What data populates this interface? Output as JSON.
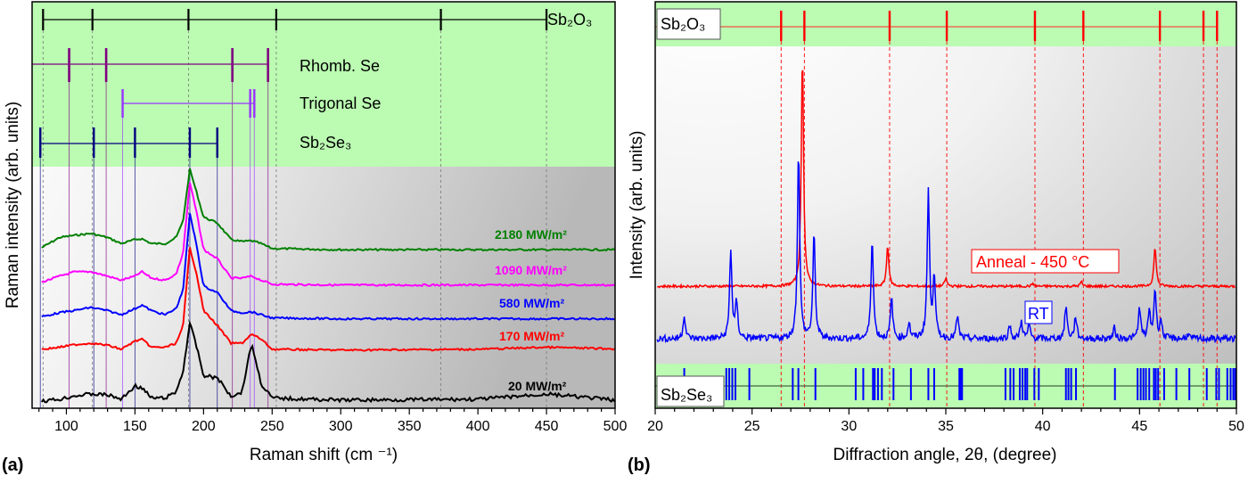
{
  "chart_data": [
    {
      "panel_label": "(a)",
      "type": "line",
      "xlabel": "Raman shift (cm ⁻¹)",
      "ylabel": "Raman intensity (arb. units)",
      "xlim": [
        75,
        500
      ],
      "xticks": [
        100,
        150,
        200,
        250,
        300,
        350,
        400,
        450,
        500
      ],
      "grid": false,
      "colors": {
        "reference_band": "#bbfbb2"
      },
      "x": [
        82,
        95,
        105,
        118,
        130,
        140,
        150,
        155,
        162,
        172,
        180,
        185,
        190,
        195,
        200,
        210,
        220,
        228,
        235,
        242,
        250,
        300,
        400,
        450,
        500
      ],
      "series": [
        {
          "name": "2180 MW/m²",
          "color": "#008000",
          "values": [
            39.5,
            42,
            42.5,
            43,
            42,
            40.5,
            41.5,
            41.7,
            40.5,
            40.5,
            42,
            46,
            58.8,
            53,
            47,
            45.6,
            41.5,
            41,
            41.2,
            40.5,
            39.3,
            39,
            39,
            39,
            39
          ]
        },
        {
          "name": "1090 MW/m²",
          "color": "#ff00ff",
          "values": [
            31,
            32.5,
            33.5,
            33.6,
            32.5,
            31.5,
            32.5,
            33.6,
            32,
            31.5,
            33,
            38,
            55.5,
            48,
            39,
            36.8,
            32,
            32,
            32.5,
            31.5,
            30.5,
            30.3,
            30.3,
            30.3,
            30.3
          ]
        },
        {
          "name": "580 MW/m²",
          "color": "#0000ff",
          "values": [
            22.5,
            23.5,
            24,
            24.8,
            24,
            23,
            24.5,
            25.4,
            24,
            23,
            24.5,
            29,
            47.8,
            40,
            30,
            28.5,
            24,
            23.5,
            23.7,
            23,
            22.2,
            22,
            22,
            22,
            22
          ]
        },
        {
          "name": "170 MW/m²",
          "color": "#ff0000",
          "values": [
            14.5,
            15,
            15.6,
            16,
            15.5,
            14.5,
            16.5,
            17,
            15,
            15,
            16,
            20,
            39.5,
            33,
            24,
            20.4,
            16,
            16,
            18.2,
            17,
            14.5,
            14.3,
            14.5,
            15,
            14.6
          ]
        },
        {
          "name": "20 MW/m²",
          "color": "#000000",
          "values": [
            1.8,
            2.2,
            3,
            3.5,
            3.3,
            2.2,
            5.5,
            5,
            2.5,
            2.5,
            4,
            9,
            21,
            15,
            8,
            7.5,
            3,
            4,
            16,
            6,
            2.5,
            2,
            2.2,
            3.5,
            2
          ]
        }
      ],
      "references": [
        {
          "name": "Sb₂O₃",
          "color": "#000000",
          "positions": [
            83,
            119,
            189,
            253,
            373,
            450
          ]
        },
        {
          "name": "Rhomb. Se",
          "color": "#800080",
          "positions": [
            102,
            129,
            221,
            247
          ]
        },
        {
          "name": "Trigonal Se",
          "color": "#9933ff",
          "positions": [
            141,
            234,
            237
          ]
        },
        {
          "name": "Sb₂Se₃",
          "color": "#000080",
          "positions": [
            81,
            120,
            150,
            190,
            210
          ]
        }
      ]
    },
    {
      "panel_label": "(b)",
      "type": "line",
      "xlabel": "Diffraction angle, 2θ, (degree)",
      "ylabel": "Intensity (arb. units)",
      "xlim": [
        20,
        50
      ],
      "xticks": [
        20,
        25,
        30,
        35,
        40,
        45,
        50
      ],
      "grid": false,
      "series": [
        {
          "name": "Anneal - 450 °C",
          "color": "#ff0000",
          "baseline": 30,
          "peaks_x": [
            27.6,
            32.0,
            35.0,
            39.5,
            42.0,
            45.8
          ],
          "peaks_y": [
            87.3,
            40.1,
            32,
            30.7,
            31.1,
            39.7
          ]
        },
        {
          "name": "RT",
          "color": "#0000ff",
          "baseline": 17.1,
          "peaks_x": [
            21.5,
            23.9,
            24.2,
            27.4,
            28.2,
            31.2,
            32.2,
            33.1,
            34.1,
            34.4,
            35.6,
            38.3,
            38.9,
            39.3,
            41.2,
            41.7,
            43.7,
            45.0,
            45.5,
            45.8,
            46.1,
            47.5
          ],
          "peaks_y": [
            23,
            39,
            25.9,
            63.6,
            43,
            42.3,
            27,
            21,
            53.3,
            32.5,
            22.6,
            20.4,
            21.5,
            20.4,
            25.2,
            22.6,
            19.7,
            24.8,
            23.7,
            29.2,
            21.5,
            18.2
          ]
        }
      ],
      "references": [
        {
          "name": "Sb₂O₃",
          "color": "#ff0000",
          "positions": [
            26.5,
            27.7,
            32.1,
            35.05,
            39.6,
            42.1,
            46.05,
            48.3,
            49.0
          ]
        },
        {
          "name": "Sb₂Se₃",
          "color": "#0000ff",
          "positions": [
            21.5,
            23.67,
            23.82,
            23.98,
            24.14,
            24.86,
            27.1,
            27.39,
            28.27,
            30.35,
            30.74,
            31.24,
            31.33,
            31.5,
            31.7,
            32.3,
            33.2,
            34.1,
            34.4,
            35.7,
            35.76,
            35.84,
            38.08,
            38.33,
            38.5,
            38.82,
            38.96,
            39.1,
            39.2,
            39.57,
            39.8,
            41.2,
            41.33,
            41.47,
            41.72,
            43.73,
            44.9,
            45.06,
            45.2,
            45.33,
            45.5,
            45.74,
            45.84,
            45.96,
            46.27,
            46.9,
            47.57,
            48.47,
            48.96,
            49.1,
            49.53,
            49.7,
            49.84,
            49.94
          ]
        }
      ]
    }
  ]
}
